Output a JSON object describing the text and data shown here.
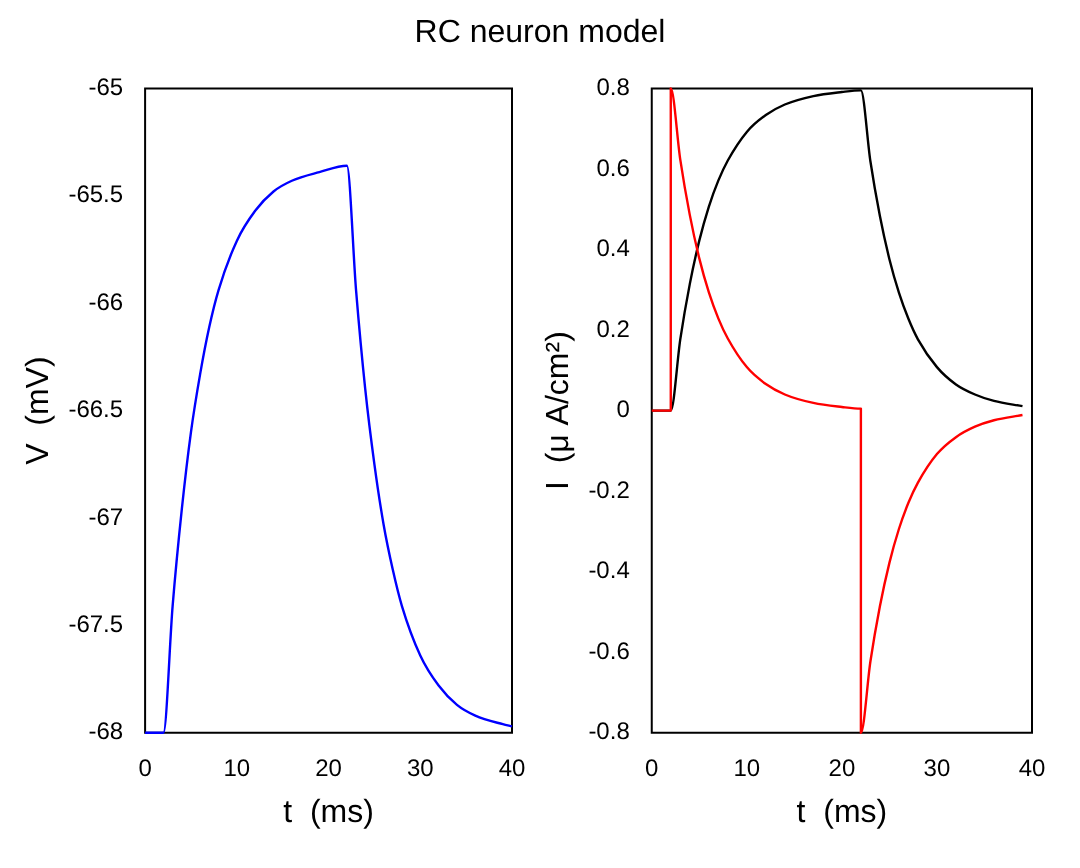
{
  "chart_data": [
    {
      "type": "line",
      "title": "RC neuron model",
      "xlabel": "t  (ms)",
      "ylabel": "V  (mV)",
      "xlim": [
        0,
        40
      ],
      "xticks": [
        0,
        10,
        20,
        30,
        40
      ],
      "ylim": [
        -68,
        -65
      ],
      "yticks": [
        -68,
        -67.5,
        -67,
        -66.5,
        -66,
        -65.5,
        -65
      ],
      "grid": false,
      "marker": "none",
      "line_style": "solid",
      "series": [
        {
          "color": "#0000ff",
          "x": [
            0,
            2,
            3,
            4,
            5,
            6,
            7,
            8,
            10,
            12,
            14,
            16,
            19,
            22,
            23,
            24,
            25,
            26,
            27,
            28,
            30,
            32,
            34,
            36,
            39,
            40
          ],
          "values": [
            -68,
            -68,
            -67.41,
            -66.96,
            -66.6,
            -66.33,
            -66.11,
            -65.94,
            -65.71,
            -65.57,
            -65.48,
            -65.43,
            -65.39,
            -65.36,
            -65.94,
            -66.4,
            -66.75,
            -67.03,
            -67.24,
            -67.41,
            -67.64,
            -67.78,
            -67.87,
            -67.92,
            -67.96,
            -67.97
          ]
        }
      ]
    },
    {
      "type": "line",
      "xlabel": "t  (ms)",
      "ylabel": "I  (μ A/cm²)",
      "xlim": [
        0,
        40
      ],
      "xticks": [
        0,
        10,
        20,
        30,
        40
      ],
      "ylim": [
        -0.8,
        0.8
      ],
      "yticks": [
        -0.8,
        -0.6,
        -0.4,
        -0.2,
        0,
        0.2,
        0.4,
        0.6,
        0.8
      ],
      "grid": false,
      "marker": "none",
      "line_style": "solid",
      "series": [
        {
          "color": "#ff0000",
          "x": [
            0,
            2,
            2,
            3,
            4,
            5,
            6,
            7,
            8,
            10,
            12,
            14,
            17,
            20,
            22,
            22,
            23,
            24,
            25,
            26,
            27,
            28,
            30,
            32,
            34,
            36,
            39
          ],
          "values": [
            0,
            0,
            0.8,
            0.623,
            0.486,
            0.378,
            0.294,
            0.229,
            0.179,
            0.108,
            0.066,
            0.04,
            0.019,
            0.009,
            0.005,
            -0.8,
            -0.623,
            -0.486,
            -0.378,
            -0.294,
            -0.229,
            -0.179,
            -0.108,
            -0.066,
            -0.04,
            -0.024,
            -0.011
          ]
        },
        {
          "color": "#000000",
          "x": [
            0,
            2,
            3,
            4,
            5,
            6,
            7,
            8,
            10,
            12,
            14,
            17,
            20,
            22,
            23,
            24,
            25,
            26,
            27,
            28,
            30,
            32,
            34,
            36,
            39
          ],
          "values": [
            0,
            0,
            0.177,
            0.314,
            0.422,
            0.506,
            0.571,
            0.621,
            0.692,
            0.734,
            0.76,
            0.781,
            0.791,
            0.795,
            0.619,
            0.483,
            0.376,
            0.293,
            0.228,
            0.177,
            0.108,
            0.065,
            0.04,
            0.024,
            0.011
          ]
        }
      ]
    }
  ]
}
